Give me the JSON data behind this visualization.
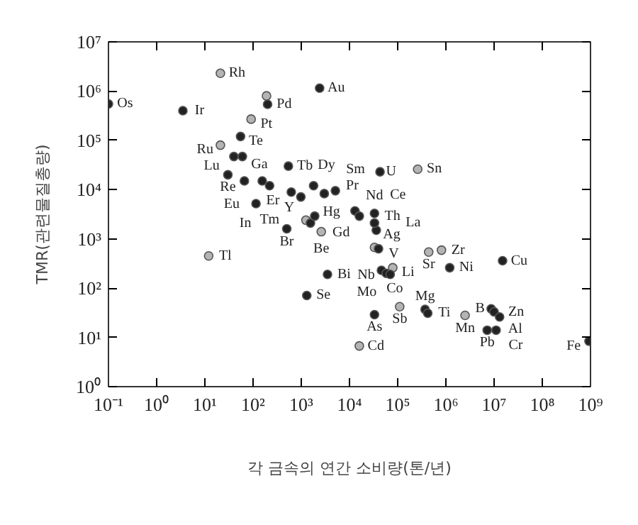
{
  "chart_data": {
    "type": "scatter",
    "xlabel": "각 금속의 연간 소비량(톤/년)",
    "ylabel": "TMR(관련물질총량)",
    "log": "xy",
    "grid": false,
    "marker": "circle",
    "xlim": [
      0.1,
      1000000000
    ],
    "ylim": [
      1,
      10000000
    ],
    "xticks": [
      {
        "value": 0.1,
        "label": "10⁻¹"
      },
      {
        "value": 1,
        "label": "10⁰"
      },
      {
        "value": 10,
        "label": "10¹"
      },
      {
        "value": 100,
        "label": "10²"
      },
      {
        "value": 1000,
        "label": "10³"
      },
      {
        "value": 10000,
        "label": "10⁴"
      },
      {
        "value": 100000,
        "label": "10⁵"
      },
      {
        "value": 1000000,
        "label": "10⁶"
      },
      {
        "value": 10000000,
        "label": "10⁷"
      },
      {
        "value": 100000000,
        "label": "10⁸"
      },
      {
        "value": 1000000000,
        "label": "10⁹"
      }
    ],
    "yticks": [
      {
        "value": 1,
        "label": "10⁰"
      },
      {
        "value": 10,
        "label": "10¹"
      },
      {
        "value": 100,
        "label": "10²"
      },
      {
        "value": 1000,
        "label": "10³"
      },
      {
        "value": 10000,
        "label": "10⁴"
      },
      {
        "value": 100000,
        "label": "10⁵"
      },
      {
        "value": 1000000,
        "label": "10⁶"
      },
      {
        "value": 10000000,
        "label": "10⁷"
      }
    ],
    "x": [
      0.1,
      3.5,
      21,
      190,
      200,
      91,
      55,
      21,
      2400,
      540,
      43000,
      260000,
      40,
      60,
      30,
      66,
      155,
      220,
      115,
      500,
      1250,
      620,
      980,
      1800,
      3000,
      5100,
      1550,
      1900,
      2600,
      13000,
      16000,
      33000,
      36000,
      33000,
      33000,
      40000,
      79000,
      810000,
      440000,
      46000,
      58000,
      70000,
      1200000,
      15000000,
      3500,
      1300,
      110000,
      33000,
      370000,
      420000,
      16000,
      2500000,
      7200000,
      8700000,
      10000000,
      13000000,
      11000000,
      930000000,
      12
    ],
    "values": [
      550000,
      400000,
      2300000,
      800000,
      540000,
      270000,
      120000,
      80000,
      1150000,
      30000,
      23000,
      26000,
      47000,
      47000,
      20000,
      15000,
      15000,
      12000,
      5200,
      1600,
      2400,
      8900,
      7100,
      12000,
      8300,
      9500,
      2100,
      2900,
      1400,
      3700,
      2900,
      3300,
      1500,
      2100,
      670,
      630,
      260,
      590,
      540,
      230,
      200,
      190,
      260,
      360,
      190,
      71,
      42,
      29,
      37,
      31,
      6.7,
      28,
      14,
      38,
      33,
      26,
      14,
      8.4,
      450
    ],
    "colors": [
      "#222222",
      "#222222",
      "#b4b4b4",
      "#b4b4b4",
      "#222222",
      "#b4b4b4",
      "#222222",
      "#b4b4b4",
      "#222222",
      "#222222",
      "#222222",
      "#b4b4b4",
      "#222222",
      "#222222",
      "#222222",
      "#222222",
      "#222222",
      "#222222",
      "#222222",
      "#222222",
      "#b4b4b4",
      "#222222",
      "#222222",
      "#222222",
      "#222222",
      "#222222",
      "#222222",
      "#222222",
      "#b4b4b4",
      "#222222",
      "#222222",
      "#222222",
      "#222222",
      "#222222",
      "#b4b4b4",
      "#222222",
      "#b4b4b4",
      "#b4b4b4",
      "#b4b4b4",
      "#222222",
      "#222222",
      "#222222",
      "#222222",
      "#222222",
      "#222222",
      "#222222",
      "#b4b4b4",
      "#222222",
      "#222222",
      "#222222",
      "#b4b4b4",
      "#b4b4b4",
      "#222222",
      "#222222",
      "#222222",
      "#222222",
      "#222222",
      "#222222",
      "#b4b4b4"
    ],
    "annotations": [
      {
        "text": "Os",
        "x": 0.1,
        "y": 550000
      },
      {
        "text": "Ir",
        "x": 3.5,
        "y": 400000
      },
      {
        "text": "Rh",
        "x": 21,
        "y": 2300000
      },
      {
        "text": "Pd",
        "x": 200,
        "y": 540000
      },
      {
        "text": "Pt",
        "x": 91,
        "y": 270000
      },
      {
        "text": "Te",
        "x": 55,
        "y": 120000
      },
      {
        "text": "Ru",
        "x": 21,
        "y": 80000
      },
      {
        "text": "Au",
        "x": 2400,
        "y": 1150000
      },
      {
        "text": "Tb",
        "x": 540,
        "y": 30000
      },
      {
        "text": "U",
        "x": 43000,
        "y": 23000
      },
      {
        "text": "Sn",
        "x": 260000,
        "y": 26000
      },
      {
        "text": "Ga",
        "x": 40,
        "y": 47000
      },
      {
        "text": "Lu",
        "x": 60,
        "y": 47000
      },
      {
        "text": "Re",
        "x": 30,
        "y": 20000
      },
      {
        "text": "Eu",
        "x": 66,
        "y": 15000
      },
      {
        "text": "Er",
        "x": 155,
        "y": 15000
      },
      {
        "text": "Tm",
        "x": 220,
        "y": 12000
      },
      {
        "text": "In",
        "x": 115,
        "y": 5200
      },
      {
        "text": "Br",
        "x": 500,
        "y": 1600
      },
      {
        "text": "Hg",
        "x": 1250,
        "y": 2400
      },
      {
        "text": "Dy",
        "x": 620,
        "y": 8900
      },
      {
        "text": "Pr",
        "x": 1800,
        "y": 12000
      },
      {
        "text": "Sm",
        "x": 3000,
        "y": 8300
      },
      {
        "text": "Gd",
        "x": 1550,
        "y": 2100
      },
      {
        "text": "Y",
        "x": 1900,
        "y": 2900
      },
      {
        "text": "Be",
        "x": 2600,
        "y": 1400
      },
      {
        "text": "Nd",
        "x": 13000,
        "y": 3700
      },
      {
        "text": "Th",
        "x": 16000,
        "y": 2900
      },
      {
        "text": "Ce",
        "x": 33000,
        "y": 3300
      },
      {
        "text": "Ag",
        "x": 36000,
        "y": 1500
      },
      {
        "text": "La",
        "x": 33000,
        "y": 2100
      },
      {
        "text": "V",
        "x": 40000,
        "y": 630
      },
      {
        "text": "Li",
        "x": 79000,
        "y": 260
      },
      {
        "text": "Zr",
        "x": 810000,
        "y": 590
      },
      {
        "text": "Sr",
        "x": 440000,
        "y": 540
      },
      {
        "text": "Nb",
        "x": 46000,
        "y": 230
      },
      {
        "text": "Co",
        "x": 58000,
        "y": 200
      },
      {
        "text": "Mo",
        "x": 70000,
        "y": 190
      },
      {
        "text": "Ni",
        "x": 1200000,
        "y": 260
      },
      {
        "text": "Cu",
        "x": 15000000,
        "y": 360
      },
      {
        "text": "Bi",
        "x": 3500,
        "y": 190
      },
      {
        "text": "Se",
        "x": 1300,
        "y": 71
      },
      {
        "text": "Sb",
        "x": 110000,
        "y": 42
      },
      {
        "text": "As",
        "x": 33000,
        "y": 29
      },
      {
        "text": "Mg",
        "x": 370000,
        "y": 37
      },
      {
        "text": "Ti",
        "x": 420000,
        "y": 31
      },
      {
        "text": "Cd",
        "x": 16000,
        "y": 6.7
      },
      {
        "text": "Mn",
        "x": 2500000,
        "y": 28
      },
      {
        "text": "Pb",
        "x": 7200000,
        "y": 14
      },
      {
        "text": "B",
        "x": 8700000,
        "y": 38
      },
      {
        "text": "Zn",
        "x": 10000000,
        "y": 33
      },
      {
        "text": "Al",
        "x": 13000000,
        "y": 26
      },
      {
        "text": "Cr",
        "x": 11000000,
        "y": 14
      },
      {
        "text": "Fe",
        "x": 930000000,
        "y": 8.4
      },
      {
        "text": "Tl",
        "x": 12,
        "y": 450
      }
    ]
  }
}
